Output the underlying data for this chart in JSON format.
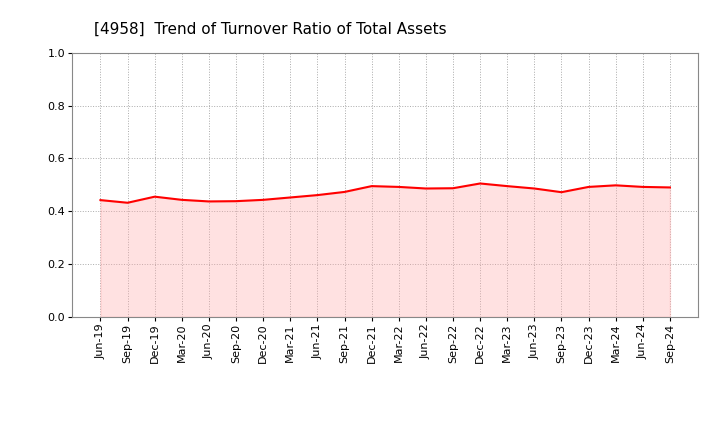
{
  "title": "[4958]  Trend of Turnover Ratio of Total Assets",
  "title_fontsize": 11,
  "line_color": "#FF0000",
  "line_width": 1.5,
  "fill_color": "#FFAAAA",
  "fill_alpha": 0.35,
  "background_color": "#FFFFFF",
  "ylim": [
    0.0,
    1.0
  ],
  "yticks": [
    0.0,
    0.2,
    0.4,
    0.6,
    0.8,
    1.0
  ],
  "xlabels": [
    "Jun-19",
    "Sep-19",
    "Dec-19",
    "Mar-20",
    "Jun-20",
    "Sep-20",
    "Dec-20",
    "Mar-21",
    "Jun-21",
    "Sep-21",
    "Dec-21",
    "Mar-22",
    "Jun-22",
    "Sep-22",
    "Dec-22",
    "Mar-23",
    "Jun-23",
    "Sep-23",
    "Dec-23",
    "Mar-24",
    "Jun-24",
    "Sep-24"
  ],
  "values": [
    0.442,
    0.432,
    0.455,
    0.443,
    0.437,
    0.438,
    0.443,
    0.452,
    0.461,
    0.473,
    0.495,
    0.492,
    0.486,
    0.487,
    0.505,
    0.495,
    0.486,
    0.472,
    0.492,
    0.498,
    0.492,
    0.49
  ],
  "grid_color": "#AAAAAA",
  "grid_linestyle": ":",
  "grid_linewidth": 0.7,
  "tick_labelsize": 8,
  "spine_color": "#888888"
}
